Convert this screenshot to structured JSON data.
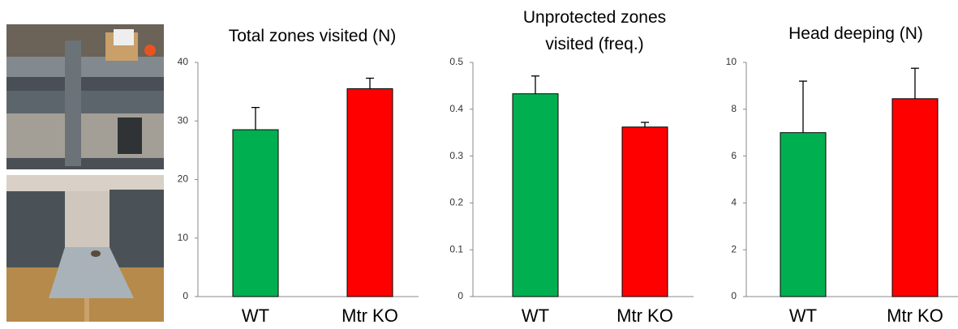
{
  "chart_data": [
    {
      "type": "bar",
      "title": "Total zones visited (N)",
      "categories": [
        "WT",
        "Mtr KO"
      ],
      "values": [
        28.5,
        35.5
      ],
      "errors": [
        3.8,
        1.8
      ],
      "colors": [
        "#00b050",
        "#ff0000"
      ],
      "ylim": [
        0,
        40
      ],
      "yticks": [
        0,
        10,
        20,
        30,
        40
      ]
    },
    {
      "type": "bar",
      "title": "Unprotected zones visited (freq.)",
      "categories": [
        "WT",
        "Mtr KO"
      ],
      "values": [
        0.433,
        0.362
      ],
      "errors": [
        0.038,
        0.01
      ],
      "colors": [
        "#00b050",
        "#ff0000"
      ],
      "ylim": [
        0,
        0.5
      ],
      "yticks": [
        0,
        0.1,
        0.2,
        0.3,
        0.4,
        0.5
      ]
    },
    {
      "type": "bar",
      "title": "Head deeping (N)",
      "categories": [
        "WT",
        "Mtr KO"
      ],
      "values": [
        7.0,
        8.45
      ],
      "errors": [
        2.2,
        1.3
      ],
      "colors": [
        "#00b050",
        "#ff0000"
      ],
      "ylim": [
        0,
        10
      ],
      "yticks": [
        0,
        2,
        4,
        6,
        8,
        10
      ]
    }
  ]
}
